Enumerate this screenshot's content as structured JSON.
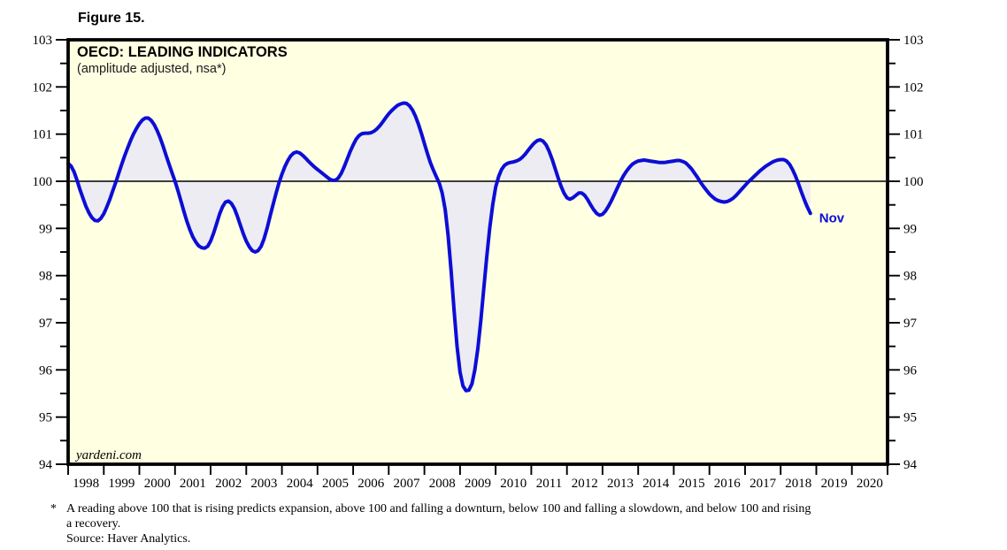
{
  "figure_label": "Figure 15.",
  "chart": {
    "title": "OECD: LEADING INDICATORS",
    "subtitle": "(amplitude adjusted, nsa*)",
    "watermark": "yardeni.com",
    "annotation_label": "Nov"
  },
  "footnote": {
    "marker": "*",
    "line1": "A reading above 100 that is rising predicts expansion, above 100 and falling a downturn, below 100 and falling a slowdown, and below 100 and rising",
    "line2": "a recovery.",
    "line3": "Source: Haver Analytics."
  },
  "chart_data": {
    "type": "area",
    "title": "OECD: LEADING INDICATORS",
    "subtitle": "(amplitude adjusted, nsa*)",
    "baseline": 100,
    "ylim": [
      94,
      103
    ],
    "xlim": [
      1998,
      2021
    ],
    "y_ticks": [
      94,
      95,
      96,
      97,
      98,
      99,
      100,
      101,
      102,
      103
    ],
    "y_minor_ticks": [
      94.5,
      95.5,
      96.5,
      97.5,
      98.5,
      99.5,
      100.5,
      101.5,
      102.5
    ],
    "x_year_labels": [
      "1998",
      "1999",
      "2000",
      "2001",
      "2002",
      "2003",
      "2004",
      "2005",
      "2006",
      "2007",
      "2008",
      "2009",
      "2010",
      "2011",
      "2012",
      "2013",
      "2014",
      "2015",
      "2016",
      "2017",
      "2018",
      "2019",
      "2020"
    ],
    "x_start": 1998.0,
    "x_step_years": 0.0833333,
    "series_name": "OECD composite leading indicator (amplitude adjusted, nsa)",
    "values": [
      100.38,
      100.32,
      100.2,
      100.02,
      99.82,
      99.64,
      99.47,
      99.33,
      99.23,
      99.17,
      99.16,
      99.21,
      99.31,
      99.45,
      99.61,
      99.79,
      99.97,
      100.16,
      100.35,
      100.53,
      100.7,
      100.86,
      101.0,
      101.12,
      101.22,
      101.3,
      101.34,
      101.34,
      101.29,
      101.2,
      101.07,
      100.92,
      100.74,
      100.55,
      100.36,
      100.18,
      100.0,
      99.8,
      99.58,
      99.36,
      99.15,
      98.97,
      98.82,
      98.71,
      98.63,
      98.59,
      98.58,
      98.62,
      98.73,
      98.9,
      99.1,
      99.3,
      99.46,
      99.56,
      99.58,
      99.53,
      99.42,
      99.26,
      99.07,
      98.89,
      98.73,
      98.61,
      98.53,
      98.5,
      98.53,
      98.62,
      98.78,
      99.0,
      99.25,
      99.5,
      99.74,
      99.96,
      100.15,
      100.31,
      100.44,
      100.54,
      100.6,
      100.62,
      100.6,
      100.55,
      100.49,
      100.42,
      100.36,
      100.3,
      100.25,
      100.2,
      100.15,
      100.1,
      100.05,
      100.02,
      100.02,
      100.07,
      100.17,
      100.31,
      100.47,
      100.63,
      100.77,
      100.89,
      100.97,
      101.01,
      101.02,
      101.02,
      101.03,
      101.06,
      101.11,
      101.18,
      101.26,
      101.35,
      101.43,
      101.5,
      101.56,
      101.61,
      101.64,
      101.66,
      101.65,
      101.6,
      101.51,
      101.38,
      101.21,
      101.01,
      100.8,
      100.59,
      100.4,
      100.24,
      100.1,
      99.96,
      99.75,
      99.4,
      98.85,
      98.1,
      97.25,
      96.5,
      95.95,
      95.66,
      95.56,
      95.57,
      95.7,
      96.0,
      96.45,
      97.05,
      97.72,
      98.4,
      99.0,
      99.5,
      99.87,
      100.1,
      100.25,
      100.34,
      100.38,
      100.4,
      100.41,
      100.43,
      100.46,
      100.51,
      100.58,
      100.66,
      100.74,
      100.81,
      100.86,
      100.88,
      100.85,
      100.77,
      100.64,
      100.47,
      100.28,
      100.08,
      99.9,
      99.75,
      99.65,
      99.62,
      99.65,
      99.7,
      99.75,
      99.75,
      99.7,
      99.61,
      99.5,
      99.4,
      99.32,
      99.28,
      99.3,
      99.37,
      99.47,
      99.59,
      99.72,
      99.86,
      99.99,
      100.11,
      100.21,
      100.29,
      100.36,
      100.4,
      100.43,
      100.44,
      100.45,
      100.44,
      100.43,
      100.42,
      100.41,
      100.4,
      100.4,
      100.4,
      100.41,
      100.42,
      100.43,
      100.44,
      100.44,
      100.42,
      100.39,
      100.33,
      100.26,
      100.17,
      100.08,
      99.98,
      99.89,
      99.81,
      99.73,
      99.67,
      99.62,
      99.59,
      99.57,
      99.56,
      99.57,
      99.6,
      99.64,
      99.7,
      99.77,
      99.84,
      99.91,
      99.98,
      100.04,
      100.1,
      100.16,
      100.22,
      100.27,
      100.32,
      100.36,
      100.4,
      100.43,
      100.45,
      100.46,
      100.46,
      100.43,
      100.36,
      100.25,
      100.11,
      99.95,
      99.77,
      99.6,
      99.45,
      99.32
    ],
    "last_point_label": "Nov",
    "last_point": {
      "x": 2018.833,
      "value": 99.32
    },
    "legend_position": "none",
    "grid": "horizontal line at 100 only",
    "colors": {
      "plot_bg": "#ffffe2",
      "fill": "#ececf2",
      "line": "#0d0dd6",
      "annotation": "#0d0dd6",
      "frame": "#000000"
    }
  }
}
